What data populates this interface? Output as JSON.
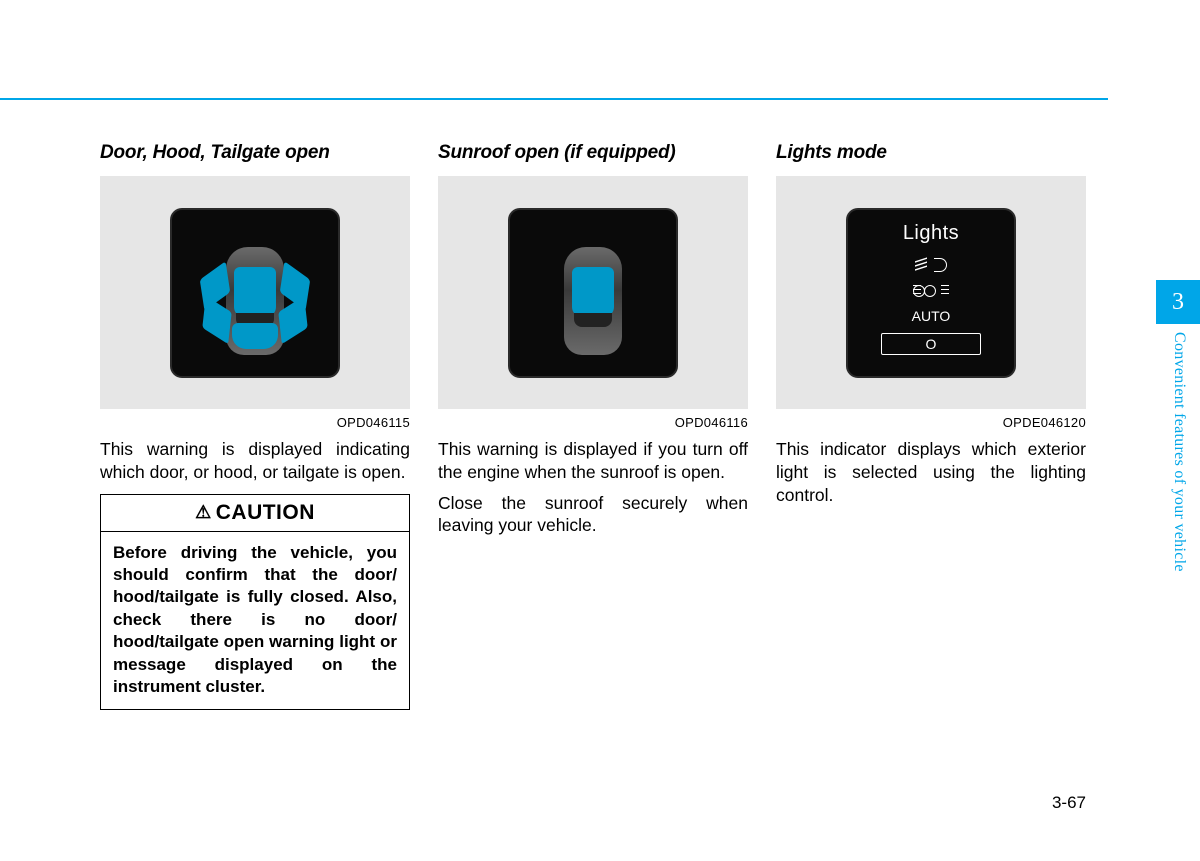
{
  "page": {
    "rule_color": "#00a6e8",
    "page_number": "3-67",
    "tab_number": "3",
    "side_label": "Convenient features of your vehicle"
  },
  "columns": {
    "door": {
      "heading": "Door, Hood, Tailgate open",
      "fig_code": "OPD046115",
      "text": "This warning is displayed indicating which door, or hood, or tailgate is open."
    },
    "sunroof": {
      "heading": "Sunroof open (if equipped)",
      "fig_code": "OPD046116",
      "text1": "This warning is displayed if you turn off the engine when the sunroof is open.",
      "text2": "Close the sunroof securely when leaving your vehicle."
    },
    "lights": {
      "heading": "Lights mode",
      "fig_code": "OPDE046120",
      "text": "This indicator displays which exterior light is selected using the lighting control.",
      "screen_title": "Lights",
      "items": {
        "auto": "AUTO",
        "off": "O"
      }
    }
  },
  "caution": {
    "title": "CAUTION",
    "body": "Before driving the vehicle, you should confirm that the door/ hood/tailgate is fully closed. Also, check there is no door/ hood/tailgate open warning light or message displayed on the instrument cluster."
  },
  "colors": {
    "figure_bg": "#e6e6e6",
    "screen_bg": "#0a0a0a",
    "accent_blue": "#0098c8",
    "brand_blue": "#00a6e8"
  }
}
